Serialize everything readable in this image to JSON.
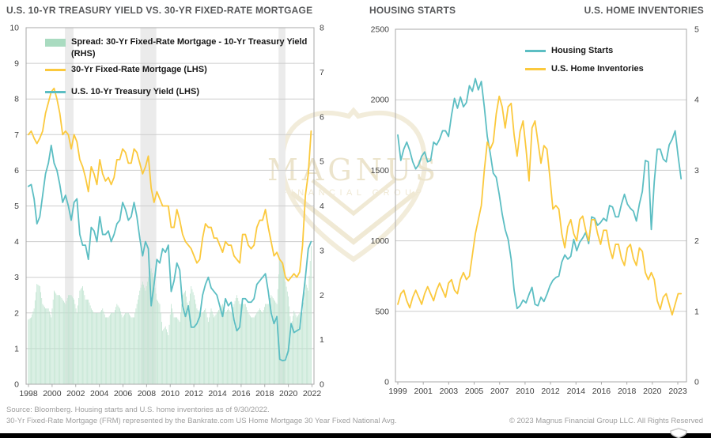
{
  "colors": {
    "treasury_teal": "#5cbec3",
    "mortgage_yellow": "#fbc93d",
    "spread_green_bar": "#bee3cf",
    "legend_green_swatch": "#a9dbc0",
    "gridline": "#cdcdcd",
    "plot_border": "#a9a9a9",
    "recession_band": "#ebebeb",
    "title_gray": "#57585a",
    "footer_gray": "#9e9e9e",
    "bottom_bar": "#000000",
    "watermark_cream": "#f2ecda"
  },
  "watermark": {
    "brand": "MAGNUS",
    "tagline": "FINANCIAL GROUP"
  },
  "footer": {
    "source_line1": "Source: Bloomberg. Housing starts and U.S. home inventories as of 9/30/2022.",
    "source_line2": "30-Yr Fixed-Rate Mortgage (FRM) represented by the Bankrate.com US Home Mortgage 30 Year Fixed National Avg.",
    "copyright": "© 2023 Magnus Financial Group LLC. All Rights Reserved"
  },
  "chart_data": [
    {
      "type": "line+bar",
      "title": "U.S. 10-YR TREASURY YIELD VS. 30-YR FIXED-RATE MORTGAGE",
      "x_start": 1998.0,
      "x_step": 0.25,
      "xlim": [
        1997.8,
        2023.0
      ],
      "ylim_left": [
        0,
        10
      ],
      "ylim_right": [
        0,
        8
      ],
      "yticks_left": [
        0,
        1,
        2,
        3,
        4,
        5,
        6,
        7,
        8,
        9,
        10
      ],
      "yticks_right": [
        0,
        1,
        2,
        3,
        4,
        5,
        6,
        7,
        8
      ],
      "xtick_labels": [
        "1998",
        "2000",
        "2002",
        "2004",
        "2006",
        "2008",
        "2010",
        "2012",
        "2014",
        "2016",
        "2018",
        "2020",
        "2022"
      ],
      "recession_bands": [
        [
          2001.2,
          2001.95
        ],
        [
          2007.8,
          2009.2
        ],
        [
          2019.9,
          2020.5
        ]
      ],
      "grid": true,
      "legend_position": "top-left",
      "series": [
        {
          "name": "Spread: 30-Yr Fixed-Rate Mortgage - 10-Yr Treasury Yield (RHS)",
          "type": "bar",
          "axis": "right",
          "color": "#bee3cf",
          "values": [
            1.45,
            1.5,
            1.7,
            2.25,
            2.2,
            1.8,
            1.7,
            1.7,
            1.5,
            2.1,
            2.0,
            2.0,
            1.9,
            1.8,
            2.0,
            2.0,
            1.9,
            1.6,
            2.1,
            2.2,
            1.9,
            1.9,
            1.7,
            1.6,
            1.6,
            1.6,
            1.7,
            1.5,
            1.5,
            1.6,
            1.6,
            1.8,
            1.7,
            1.5,
            1.6,
            1.6,
            1.5,
            1.5,
            1.8,
            2.1,
            2.3,
            2.1,
            2.4,
            2.6,
            2.3,
            1.9,
            1.8,
            1.2,
            1.3,
            1.1,
            1.8,
            1.5,
            1.5,
            1.4,
            2.0,
            2.1,
            1.7,
            2.2,
            2.0,
            1.7,
            1.6,
            1.6,
            1.7,
            1.4,
            1.7,
            1.5,
            1.6,
            1.7,
            1.8,
            1.6,
            1.7,
            1.6,
            1.8,
            2.0,
            1.8,
            1.8,
            1.8,
            1.6,
            1.5,
            1.5,
            1.6,
            1.7,
            1.6,
            1.8,
            1.8,
            2.0,
            1.9,
            1.8,
            2.8,
            2.74,
            2.3,
            1.97,
            1.3,
            1.65,
            1.5,
            1.6,
            1.6,
            2.3,
            2.1,
            3.1
          ]
        },
        {
          "name": "30-Yr Fixed-Rate Mortgage (LHS)",
          "type": "line",
          "axis": "left",
          "color": "#fbc93d",
          "values": [
            7.0,
            7.1,
            6.9,
            6.75,
            6.9,
            7.1,
            7.6,
            7.9,
            8.2,
            8.3,
            8.0,
            7.6,
            7.0,
            7.1,
            7.0,
            6.6,
            7.0,
            6.8,
            6.3,
            6.1,
            5.8,
            5.4,
            6.1,
            5.9,
            5.6,
            6.3,
            5.9,
            5.7,
            5.8,
            5.6,
            5.8,
            6.3,
            6.3,
            6.6,
            6.5,
            6.2,
            6.2,
            6.6,
            6.5,
            6.2,
            5.9,
            6.1,
            6.4,
            5.5,
            5.1,
            5.4,
            5.2,
            5.0,
            5.0,
            5.0,
            4.4,
            4.4,
            4.9,
            4.6,
            4.2,
            4.0,
            3.9,
            3.8,
            3.6,
            3.4,
            3.5,
            4.1,
            4.5,
            4.4,
            4.4,
            4.1,
            4.1,
            3.9,
            3.7,
            4.0,
            3.9,
            3.9,
            3.6,
            3.5,
            3.4,
            4.2,
            4.2,
            3.9,
            3.8,
            3.9,
            4.4,
            4.6,
            4.6,
            4.9,
            4.4,
            4.0,
            3.6,
            3.7,
            3.5,
            3.4,
            3.0,
            2.9,
            3.0,
            3.1,
            3.0,
            3.15,
            3.9,
            5.3,
            5.9,
            7.1
          ]
        },
        {
          "name": "U.S. 10-Yr Treasury Yield (LHS)",
          "type": "line",
          "axis": "left",
          "color": "#5cbec3",
          "values": [
            5.55,
            5.6,
            5.2,
            4.5,
            4.7,
            5.3,
            5.9,
            6.2,
            6.7,
            6.2,
            6.0,
            5.6,
            5.1,
            5.3,
            5.0,
            4.6,
            5.1,
            5.2,
            4.2,
            3.9,
            3.9,
            3.5,
            4.4,
            4.3,
            4.0,
            4.7,
            4.2,
            4.2,
            4.3,
            4.0,
            4.2,
            4.5,
            4.6,
            5.1,
            4.9,
            4.6,
            4.7,
            5.1,
            4.7,
            4.1,
            3.6,
            4.0,
            3.8,
            2.2,
            2.8,
            3.5,
            3.4,
            3.8,
            3.7,
            3.9,
            2.6,
            2.9,
            3.4,
            3.2,
            2.2,
            1.9,
            2.2,
            1.6,
            1.6,
            1.7,
            1.9,
            2.5,
            2.8,
            3.0,
            2.7,
            2.6,
            2.5,
            2.2,
            1.9,
            2.4,
            2.2,
            2.3,
            1.8,
            1.5,
            1.6,
            2.4,
            2.4,
            2.3,
            2.3,
            2.4,
            2.8,
            2.9,
            3.0,
            3.1,
            2.6,
            2.0,
            1.7,
            1.9,
            0.7,
            0.66,
            0.68,
            0.93,
            1.7,
            1.45,
            1.5,
            1.55,
            2.3,
            3.0,
            3.8,
            4.0
          ]
        }
      ]
    },
    {
      "type": "line",
      "title_left": "HOUSING STARTS",
      "title_right": "U.S. HOME INVENTORIES",
      "x_start": 1999.0,
      "x_step": 0.25,
      "xlim": [
        1998.8,
        2023.2
      ],
      "ylim_left": [
        0,
        2500
      ],
      "ylim_right": [
        0,
        5
      ],
      "yticks_left": [
        0,
        500,
        1000,
        1500,
        2000,
        2500
      ],
      "yticks_right": [
        0,
        1,
        2,
        3,
        4,
        5
      ],
      "xtick_labels": [
        "1999",
        "2001",
        "2003",
        "2005",
        "2007",
        "2010",
        "2012",
        "2014",
        "2016",
        "2018",
        "2020",
        "2023"
      ],
      "recession_bands": [],
      "grid": true,
      "legend_position": "top-center",
      "series": [
        {
          "name": "Housing Starts",
          "type": "line",
          "axis": "left",
          "color": "#5cbec3",
          "values": [
            1750,
            1570,
            1650,
            1700,
            1640,
            1560,
            1510,
            1540,
            1600,
            1630,
            1560,
            1570,
            1700,
            1680,
            1720,
            1780,
            1780,
            1740,
            1890,
            2010,
            1940,
            2020,
            1950,
            1980,
            2100,
            2060,
            2150,
            2070,
            2130,
            1950,
            1740,
            1620,
            1480,
            1450,
            1330,
            1190,
            1080,
            1010,
            870,
            650,
            520,
            540,
            580,
            560,
            620,
            670,
            550,
            540,
            600,
            570,
            620,
            680,
            720,
            740,
            750,
            850,
            900,
            870,
            890,
            1010,
            930,
            990,
            1020,
            1060,
            980,
            1170,
            1160,
            1110,
            1130,
            1160,
            1140,
            1250,
            1240,
            1170,
            1170,
            1260,
            1330,
            1260,
            1230,
            1210,
            1140,
            1260,
            1350,
            1570,
            1560,
            1080,
            1420,
            1650,
            1650,
            1580,
            1560,
            1680,
            1720,
            1780,
            1600,
            1440
          ]
        },
        {
          "name": "U.S. Home Inventories",
          "type": "line",
          "axis": "right",
          "color": "#fbc93d",
          "values": [
            1.1,
            1.25,
            1.3,
            1.15,
            1.05,
            1.2,
            1.3,
            1.2,
            1.1,
            1.25,
            1.35,
            1.25,
            1.15,
            1.3,
            1.4,
            1.3,
            1.2,
            1.4,
            1.45,
            1.3,
            1.25,
            1.45,
            1.55,
            1.45,
            1.5,
            1.8,
            2.1,
            2.3,
            2.5,
            3.0,
            3.4,
            3.3,
            3.4,
            3.8,
            4.05,
            3.9,
            3.6,
            3.9,
            3.95,
            3.5,
            3.2,
            3.55,
            3.7,
            3.3,
            2.85,
            3.6,
            3.7,
            3.4,
            3.1,
            3.35,
            3.3,
            2.9,
            2.45,
            2.5,
            2.45,
            2.1,
            1.9,
            2.2,
            2.3,
            2.1,
            2.0,
            2.3,
            2.35,
            2.15,
            2.0,
            2.3,
            2.3,
            2.1,
            1.95,
            2.15,
            2.15,
            1.9,
            1.75,
            1.95,
            1.95,
            1.75,
            1.65,
            1.9,
            1.95,
            1.75,
            1.65,
            1.9,
            1.85,
            1.55,
            1.45,
            1.55,
            1.45,
            1.15,
            1.03,
            1.2,
            1.25,
            1.1,
            0.95,
            1.1,
            1.25,
            1.25
          ]
        }
      ]
    }
  ]
}
